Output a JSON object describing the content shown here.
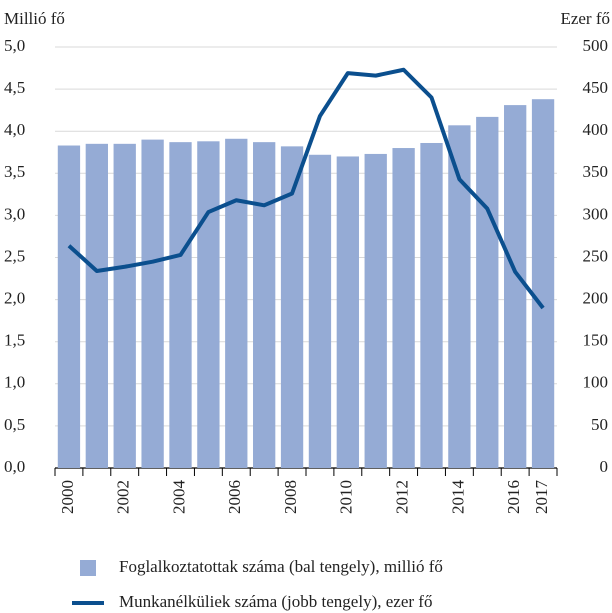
{
  "chart_data": {
    "type": "bar",
    "ylabel": "Millió fő",
    "y2label": "Ezer fő",
    "categories": [
      "2000",
      null,
      "2002",
      null,
      "2004",
      null,
      "2006",
      null,
      "2008",
      null,
      "2010",
      null,
      "2012",
      null,
      "2014",
      null,
      "2016",
      "2017"
    ],
    "series": [
      {
        "name": "Foglalkoztatottak száma (bal tengely), millió fő",
        "type": "bar",
        "color": "#95abd5",
        "values": [
          3.83,
          3.85,
          3.85,
          3.9,
          3.87,
          3.88,
          3.91,
          3.87,
          3.82,
          3.72,
          3.7,
          3.73,
          3.8,
          3.86,
          4.07,
          4.17,
          4.31,
          4.38
        ]
      },
      {
        "name": "Munkanélküliek száma (jobb tengely), ezer fő",
        "type": "line",
        "axis": "y2",
        "color": "#0b4f8e",
        "values": [
          264,
          234,
          239,
          245,
          253,
          304,
          318,
          312,
          326,
          418,
          469,
          466,
          473,
          440,
          343,
          308,
          233,
          190
        ]
      }
    ],
    "ylim": [
      0,
      5
    ],
    "yticks": [
      {
        "value": 0,
        "label": "0,0"
      },
      {
        "value": 0.5,
        "label": "0,5"
      },
      {
        "value": 1,
        "label": "1,0"
      },
      {
        "value": 1.5,
        "label": "1,5"
      },
      {
        "value": 2,
        "label": "2,0"
      },
      {
        "value": 2.5,
        "label": "2,5"
      },
      {
        "value": 3,
        "label": "3,0"
      },
      {
        "value": 3.5,
        "label": "3,5"
      },
      {
        "value": 4,
        "label": "4,0"
      },
      {
        "value": 4.5,
        "label": "4,5"
      },
      {
        "value": 5,
        "label": "5,0"
      }
    ],
    "y2lim": [
      0,
      500
    ],
    "y2ticks": [
      0,
      50,
      100,
      150,
      200,
      250,
      300,
      350,
      400,
      450,
      500
    ],
    "grid": true
  }
}
